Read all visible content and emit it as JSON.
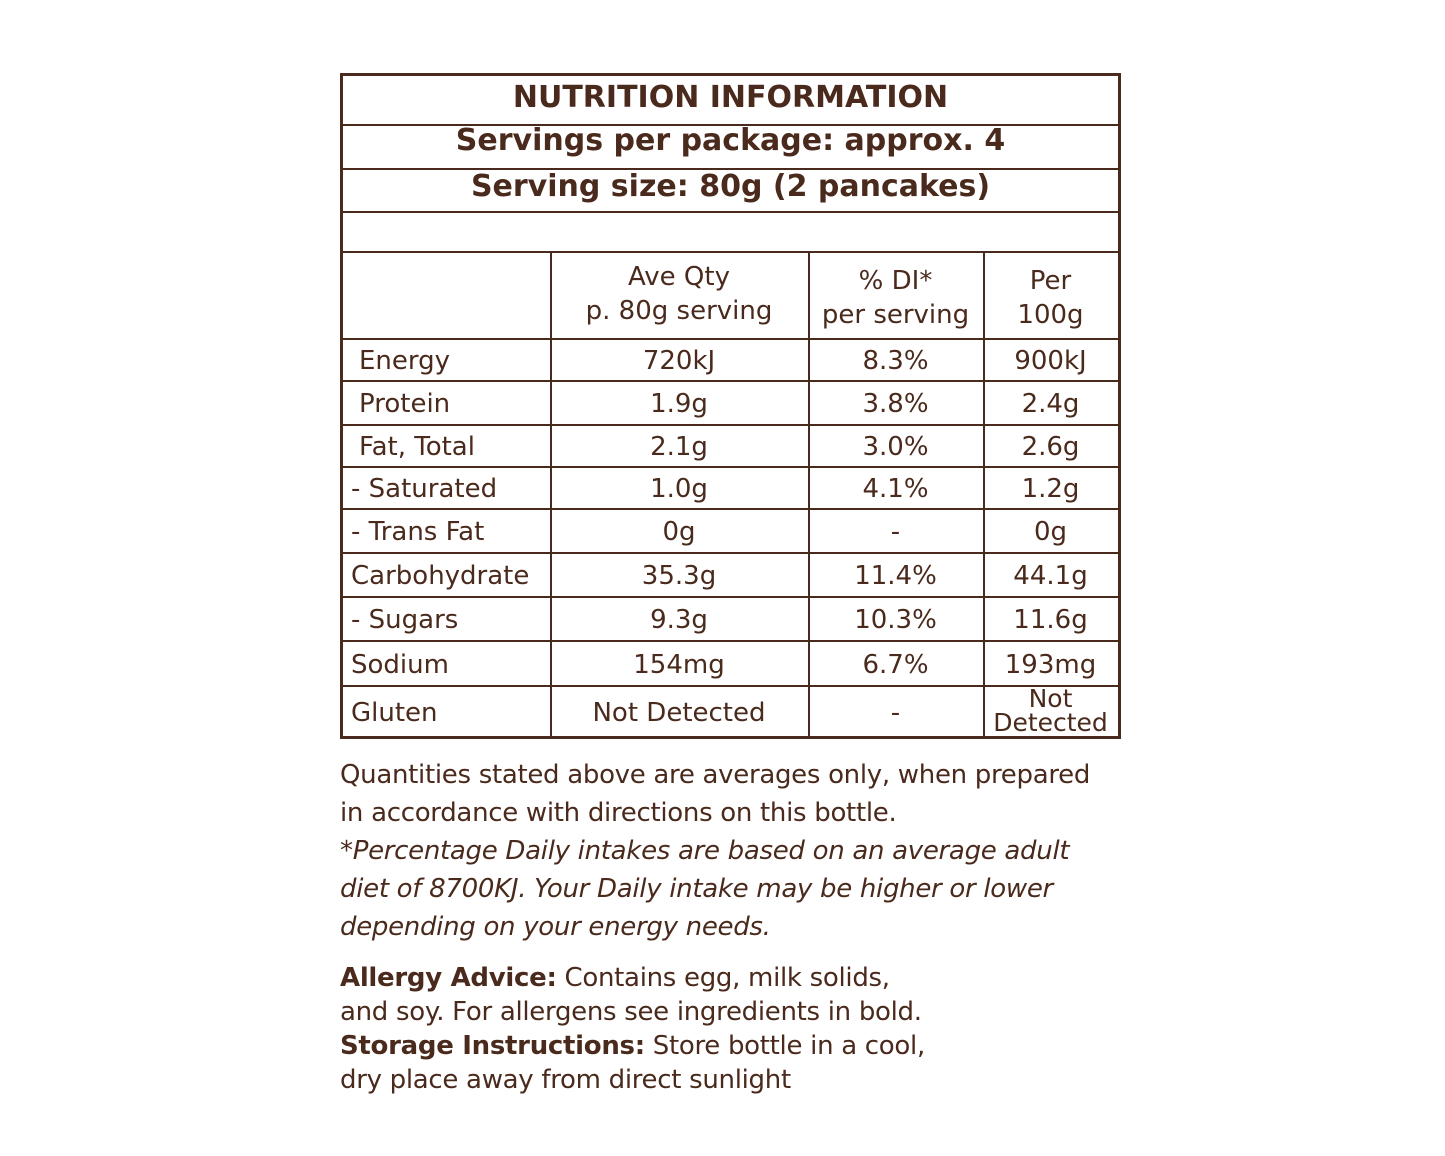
{
  "title": "NUTRITION INFORMATION",
  "servings": "Servings per package: approx. 4",
  "serving_size": "Serving size: 80g (2 pancakes)",
  "headers": [
    {
      "l1": "",
      "l2": ""
    },
    {
      "l1": "Ave Qty",
      "l2": "p. 80g serving"
    },
    {
      "l1": "% DI*",
      "l2": "per serving"
    },
    {
      "l1": "Per",
      "l2": "100g"
    }
  ],
  "rows": [
    [
      "Energy",
      "720kJ",
      "8.3%",
      "900kJ"
    ],
    [
      "Protein",
      "1.9g",
      "3.8%",
      "2.4g"
    ],
    [
      "Fat, Total",
      "2.1g",
      "3.0%",
      "2.6g"
    ],
    [
      "- Saturated",
      "1.0g",
      "4.1%",
      "1.2g"
    ],
    [
      "- Trans Fat",
      "0g",
      "-",
      "0g"
    ],
    [
      "Carbohydrate",
      "35.3g",
      "11.4%",
      "44.1g"
    ],
    [
      "- Sugars",
      "9.3g",
      "10.3%",
      "11.6g"
    ],
    [
      "Sodium",
      "154mg",
      "6.7%",
      "193mg"
    ],
    [
      "Gluten",
      "Not Detected",
      "-",
      "Not Detected"
    ]
  ],
  "notes": {
    "l1": "Quantities stated above are averages only, when prepared",
    "l2": "in accordance with directions on this bottle.",
    "l3": "*Percentage Daily intakes are based on an average adult",
    "l4": "diet of 8700KJ. Your Daily intake may be higher or lower",
    "l5": "depending on your energy needs."
  },
  "allergy": {
    "label": "Allergy Advice:",
    "l1": " Contains egg, milk solids,",
    "l2": "and soy. For allergens see ingredients in bold."
  },
  "storage": {
    "label": "Storage Instructions:",
    "l1": " Store bottle in a cool,",
    "l2": "dry place away from direct sunlight"
  },
  "colors": {
    "text": "#4a2a1c"
  }
}
